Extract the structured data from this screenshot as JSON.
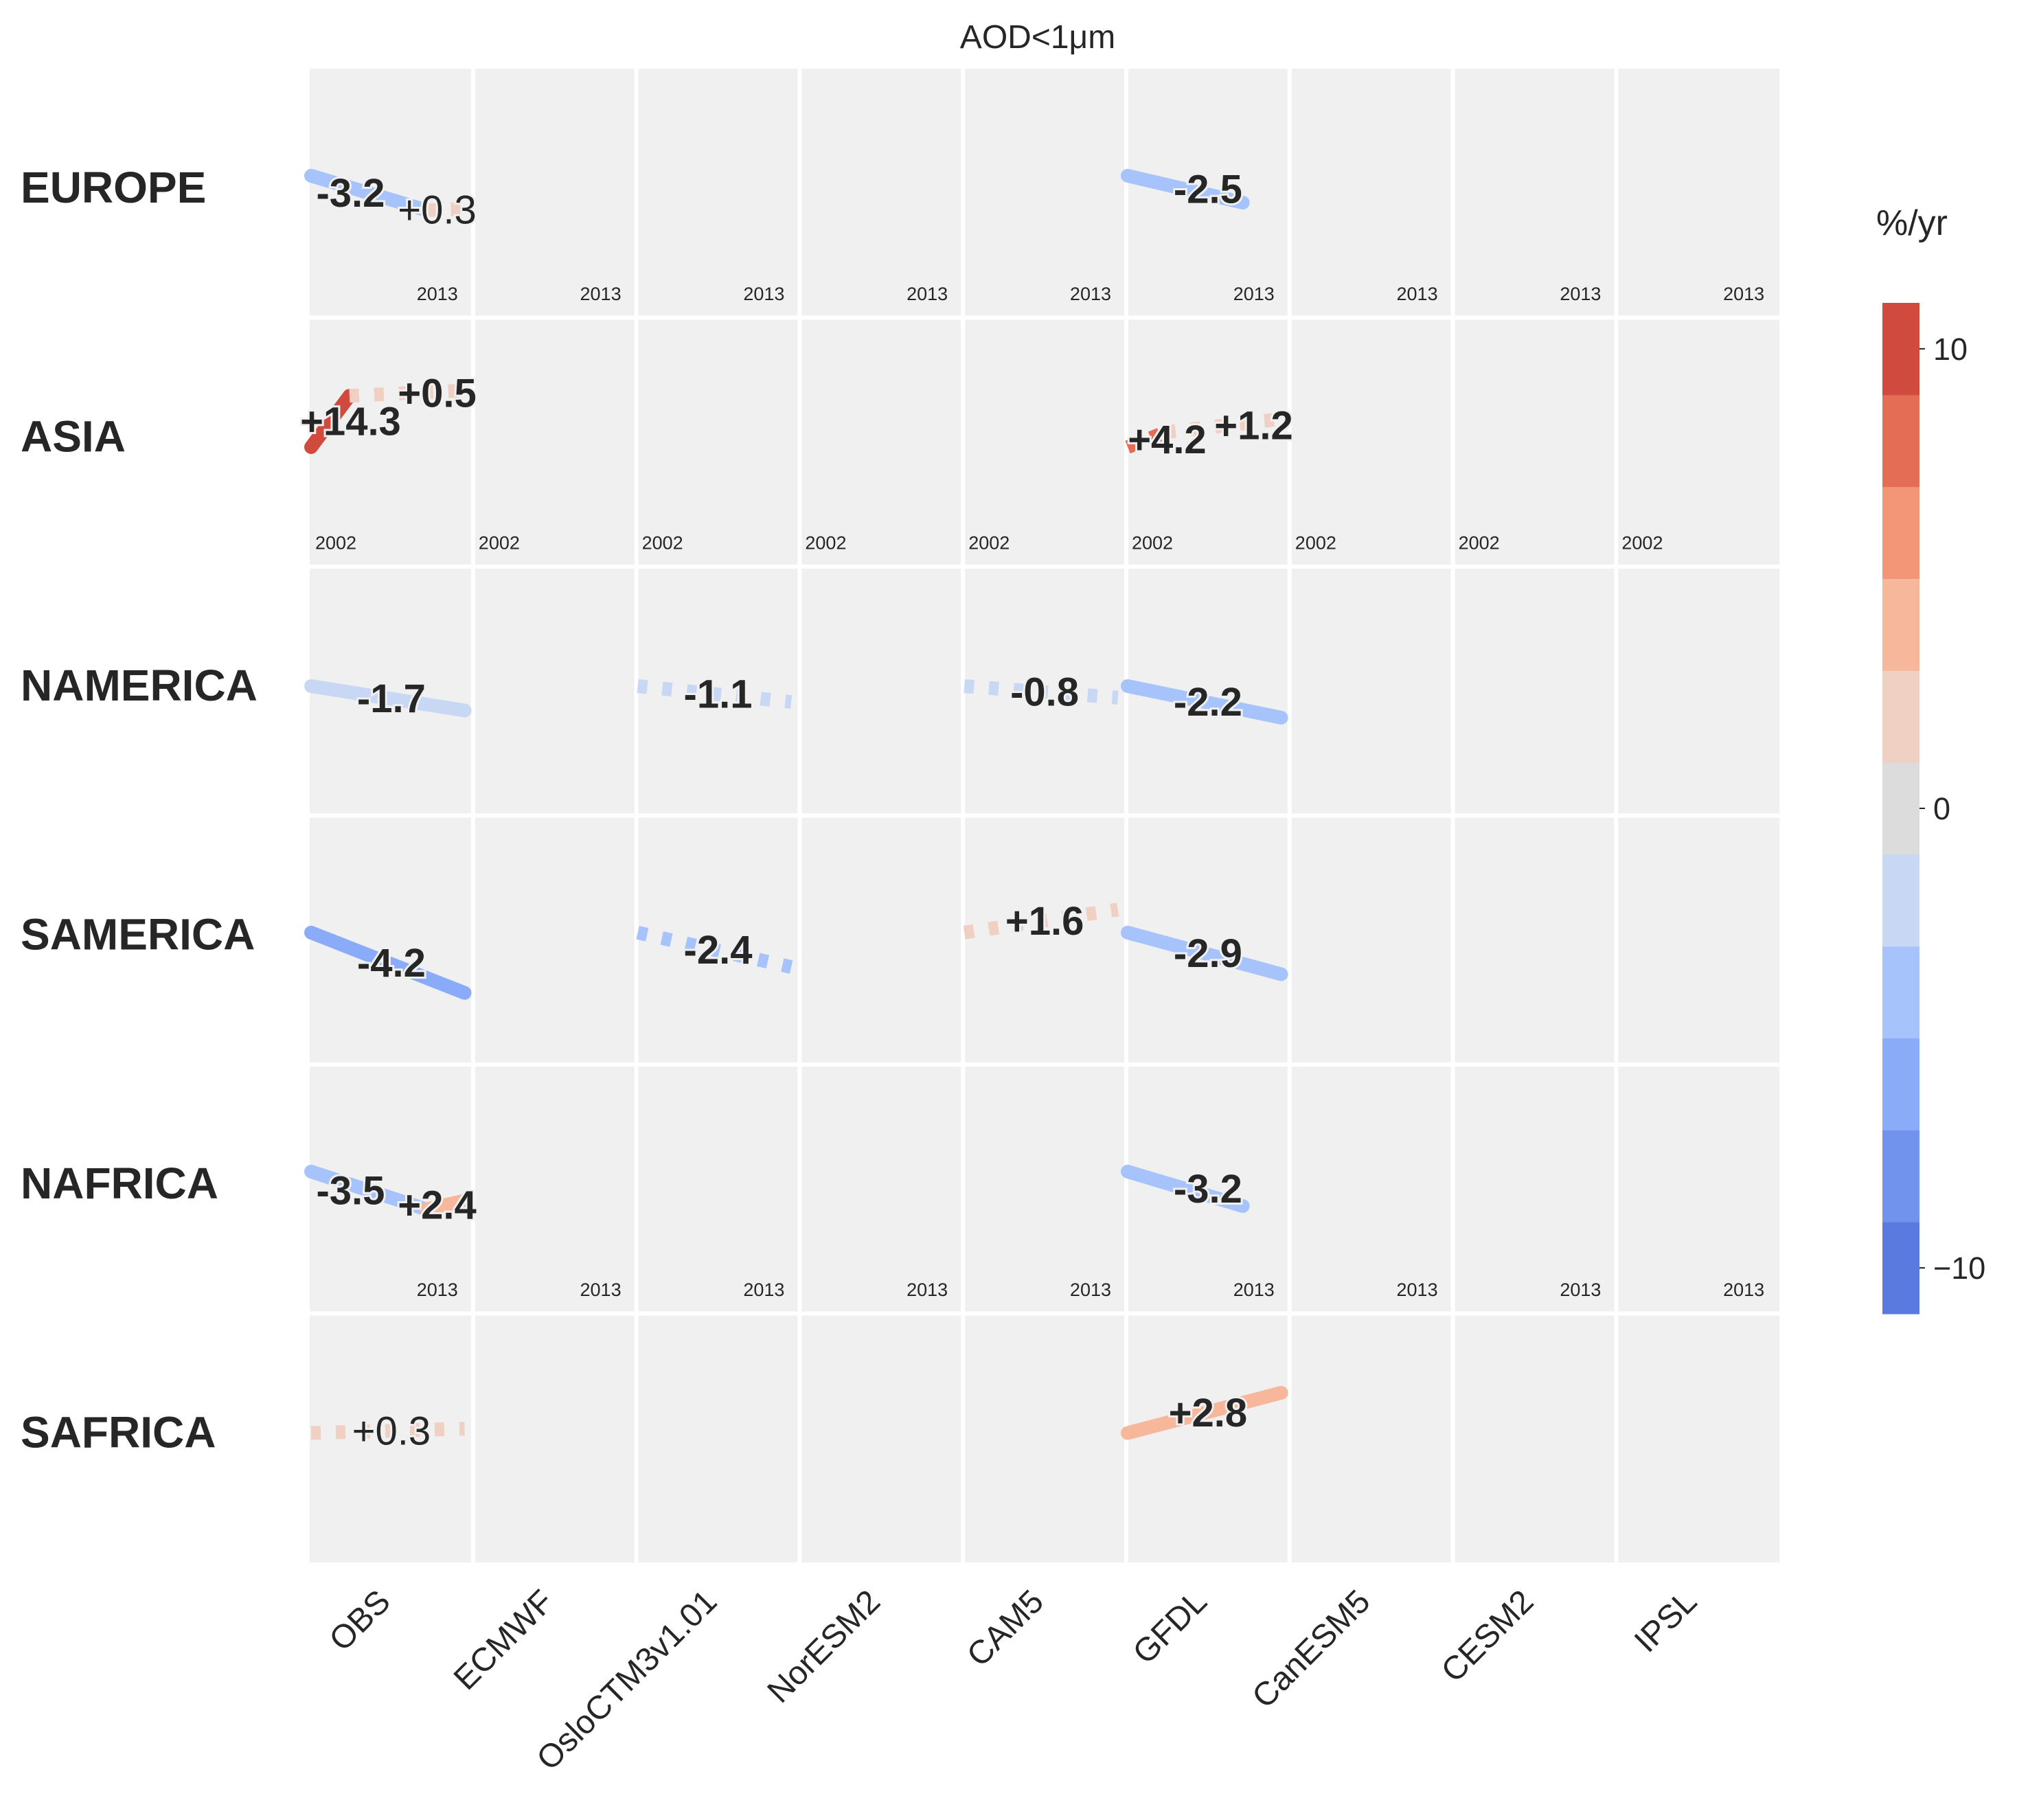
{
  "chart_data": {
    "type": "heatmap",
    "title": "AOD<1μm",
    "models": [
      "OBS",
      "ECMWF",
      "OsloCTM3v1.01",
      "NorESM2",
      "CAM5",
      "GFDL",
      "CanESM5",
      "CESM2",
      "IPSL"
    ],
    "regions": [
      "EUROPE",
      "ASIA",
      "NAMERICA",
      "SAMERICA",
      "NAFRICA",
      "SAFRICA"
    ],
    "year_labels": {
      "EUROPE": "2013",
      "ASIA": "2002",
      "NAFRICA": "2013"
    },
    "colorbar": {
      "label": "%/yr",
      "ticks": [
        "10",
        "0",
        "−10"
      ],
      "range": [
        -11,
        11
      ],
      "bins": [
        "#5b7ae0",
        "#7193ee",
        "#8aabf8",
        "#a7c3fb",
        "#c8d7f3",
        "#dcdcdc",
        "#efd0c2",
        "#f7b79b",
        "#f29677",
        "#e36e55",
        "#d04a3d"
      ]
    },
    "trends": [
      {
        "region": "EUROPE",
        "model": "OBS",
        "segments": [
          {
            "t0": 0.0,
            "t1": 0.75,
            "value": -3.2,
            "label": "-3.2",
            "significant": true,
            "color": "#a7c3fb"
          },
          {
            "t0": 0.75,
            "t1": 1.0,
            "value": 0.3,
            "label": "+0.3",
            "significant": false,
            "color": "#efd0c2"
          }
        ]
      },
      {
        "region": "EUROPE",
        "model": "GFDL",
        "segments": [
          {
            "t0": 0.0,
            "t1": 0.75,
            "value": -2.5,
            "label": "-2.5",
            "significant": true,
            "color": "#a7c3fb"
          }
        ]
      },
      {
        "region": "ASIA",
        "model": "OBS",
        "segments": [
          {
            "t0": 0.0,
            "t1": 0.25,
            "value": 14.3,
            "label": "+14.3",
            "significant": true,
            "color": "#d04a3d"
          },
          {
            "t0": 0.25,
            "t1": 1.0,
            "value": 0.5,
            "label": "+0.5",
            "significant": false,
            "color": "#efd0c2"
          }
        ]
      },
      {
        "region": "ASIA",
        "model": "GFDL",
        "segments": [
          {
            "t0": 0.0,
            "t1": 0.25,
            "value": 4.2,
            "label": "+4.2",
            "significant": false,
            "color": "#e36e55"
          },
          {
            "t0": 0.25,
            "t1": 1.0,
            "value": 1.2,
            "label": "+1.2",
            "significant": false,
            "color": "#efd0c2"
          }
        ]
      },
      {
        "region": "NAMERICA",
        "model": "OBS",
        "segments": [
          {
            "t0": 0.0,
            "t1": 1.0,
            "value": -1.7,
            "label": "-1.7",
            "significant": true,
            "color": "#c8d7f3"
          }
        ]
      },
      {
        "region": "NAMERICA",
        "model": "OsloCTM3v1.01",
        "segments": [
          {
            "t0": 0.0,
            "t1": 1.0,
            "value": -1.1,
            "label": "-1.1",
            "significant": false,
            "color": "#c8d7f3"
          }
        ]
      },
      {
        "region": "NAMERICA",
        "model": "CAM5",
        "segments": [
          {
            "t0": 0.0,
            "t1": 1.0,
            "value": -0.8,
            "label": "-0.8",
            "significant": false,
            "color": "#c8d7f3"
          }
        ]
      },
      {
        "region": "NAMERICA",
        "model": "GFDL",
        "segments": [
          {
            "t0": 0.0,
            "t1": 1.0,
            "value": -2.2,
            "label": "-2.2",
            "significant": true,
            "color": "#a7c3fb"
          }
        ]
      },
      {
        "region": "SAMERICA",
        "model": "OBS",
        "segments": [
          {
            "t0": 0.0,
            "t1": 1.0,
            "value": -4.2,
            "label": "-4.2",
            "significant": true,
            "color": "#8aabf8"
          }
        ]
      },
      {
        "region": "SAMERICA",
        "model": "OsloCTM3v1.01",
        "segments": [
          {
            "t0": 0.0,
            "t1": 1.0,
            "value": -2.4,
            "label": "-2.4",
            "significant": false,
            "color": "#a7c3fb"
          }
        ]
      },
      {
        "region": "SAMERICA",
        "model": "CAM5",
        "segments": [
          {
            "t0": 0.0,
            "t1": 1.0,
            "value": 1.6,
            "label": "+1.6",
            "significant": false,
            "color": "#efd0c2"
          }
        ]
      },
      {
        "region": "SAMERICA",
        "model": "GFDL",
        "segments": [
          {
            "t0": 0.0,
            "t1": 1.0,
            "value": -2.9,
            "label": "-2.9",
            "significant": true,
            "color": "#a7c3fb"
          }
        ]
      },
      {
        "region": "NAFRICA",
        "model": "OBS",
        "segments": [
          {
            "t0": 0.0,
            "t1": 0.75,
            "value": -3.5,
            "label": "-3.5",
            "significant": true,
            "color": "#a7c3fb"
          },
          {
            "t0": 0.75,
            "t1": 1.0,
            "value": 2.4,
            "label": "+2.4",
            "significant": true,
            "color": "#f7b79b"
          }
        ]
      },
      {
        "region": "NAFRICA",
        "model": "GFDL",
        "segments": [
          {
            "t0": 0.0,
            "t1": 0.75,
            "value": -3.2,
            "label": "-3.2",
            "significant": true,
            "color": "#a7c3fb"
          }
        ]
      },
      {
        "region": "SAFRICA",
        "model": "OBS",
        "segments": [
          {
            "t0": 0.0,
            "t1": 1.0,
            "value": 0.3,
            "label": "+0.3",
            "significant": false,
            "color": "#efd0c2"
          }
        ]
      },
      {
        "region": "SAFRICA",
        "model": "GFDL",
        "segments": [
          {
            "t0": 0.0,
            "t1": 1.0,
            "value": 2.8,
            "label": "+2.8",
            "significant": true,
            "color": "#f7b79b"
          }
        ]
      }
    ]
  }
}
